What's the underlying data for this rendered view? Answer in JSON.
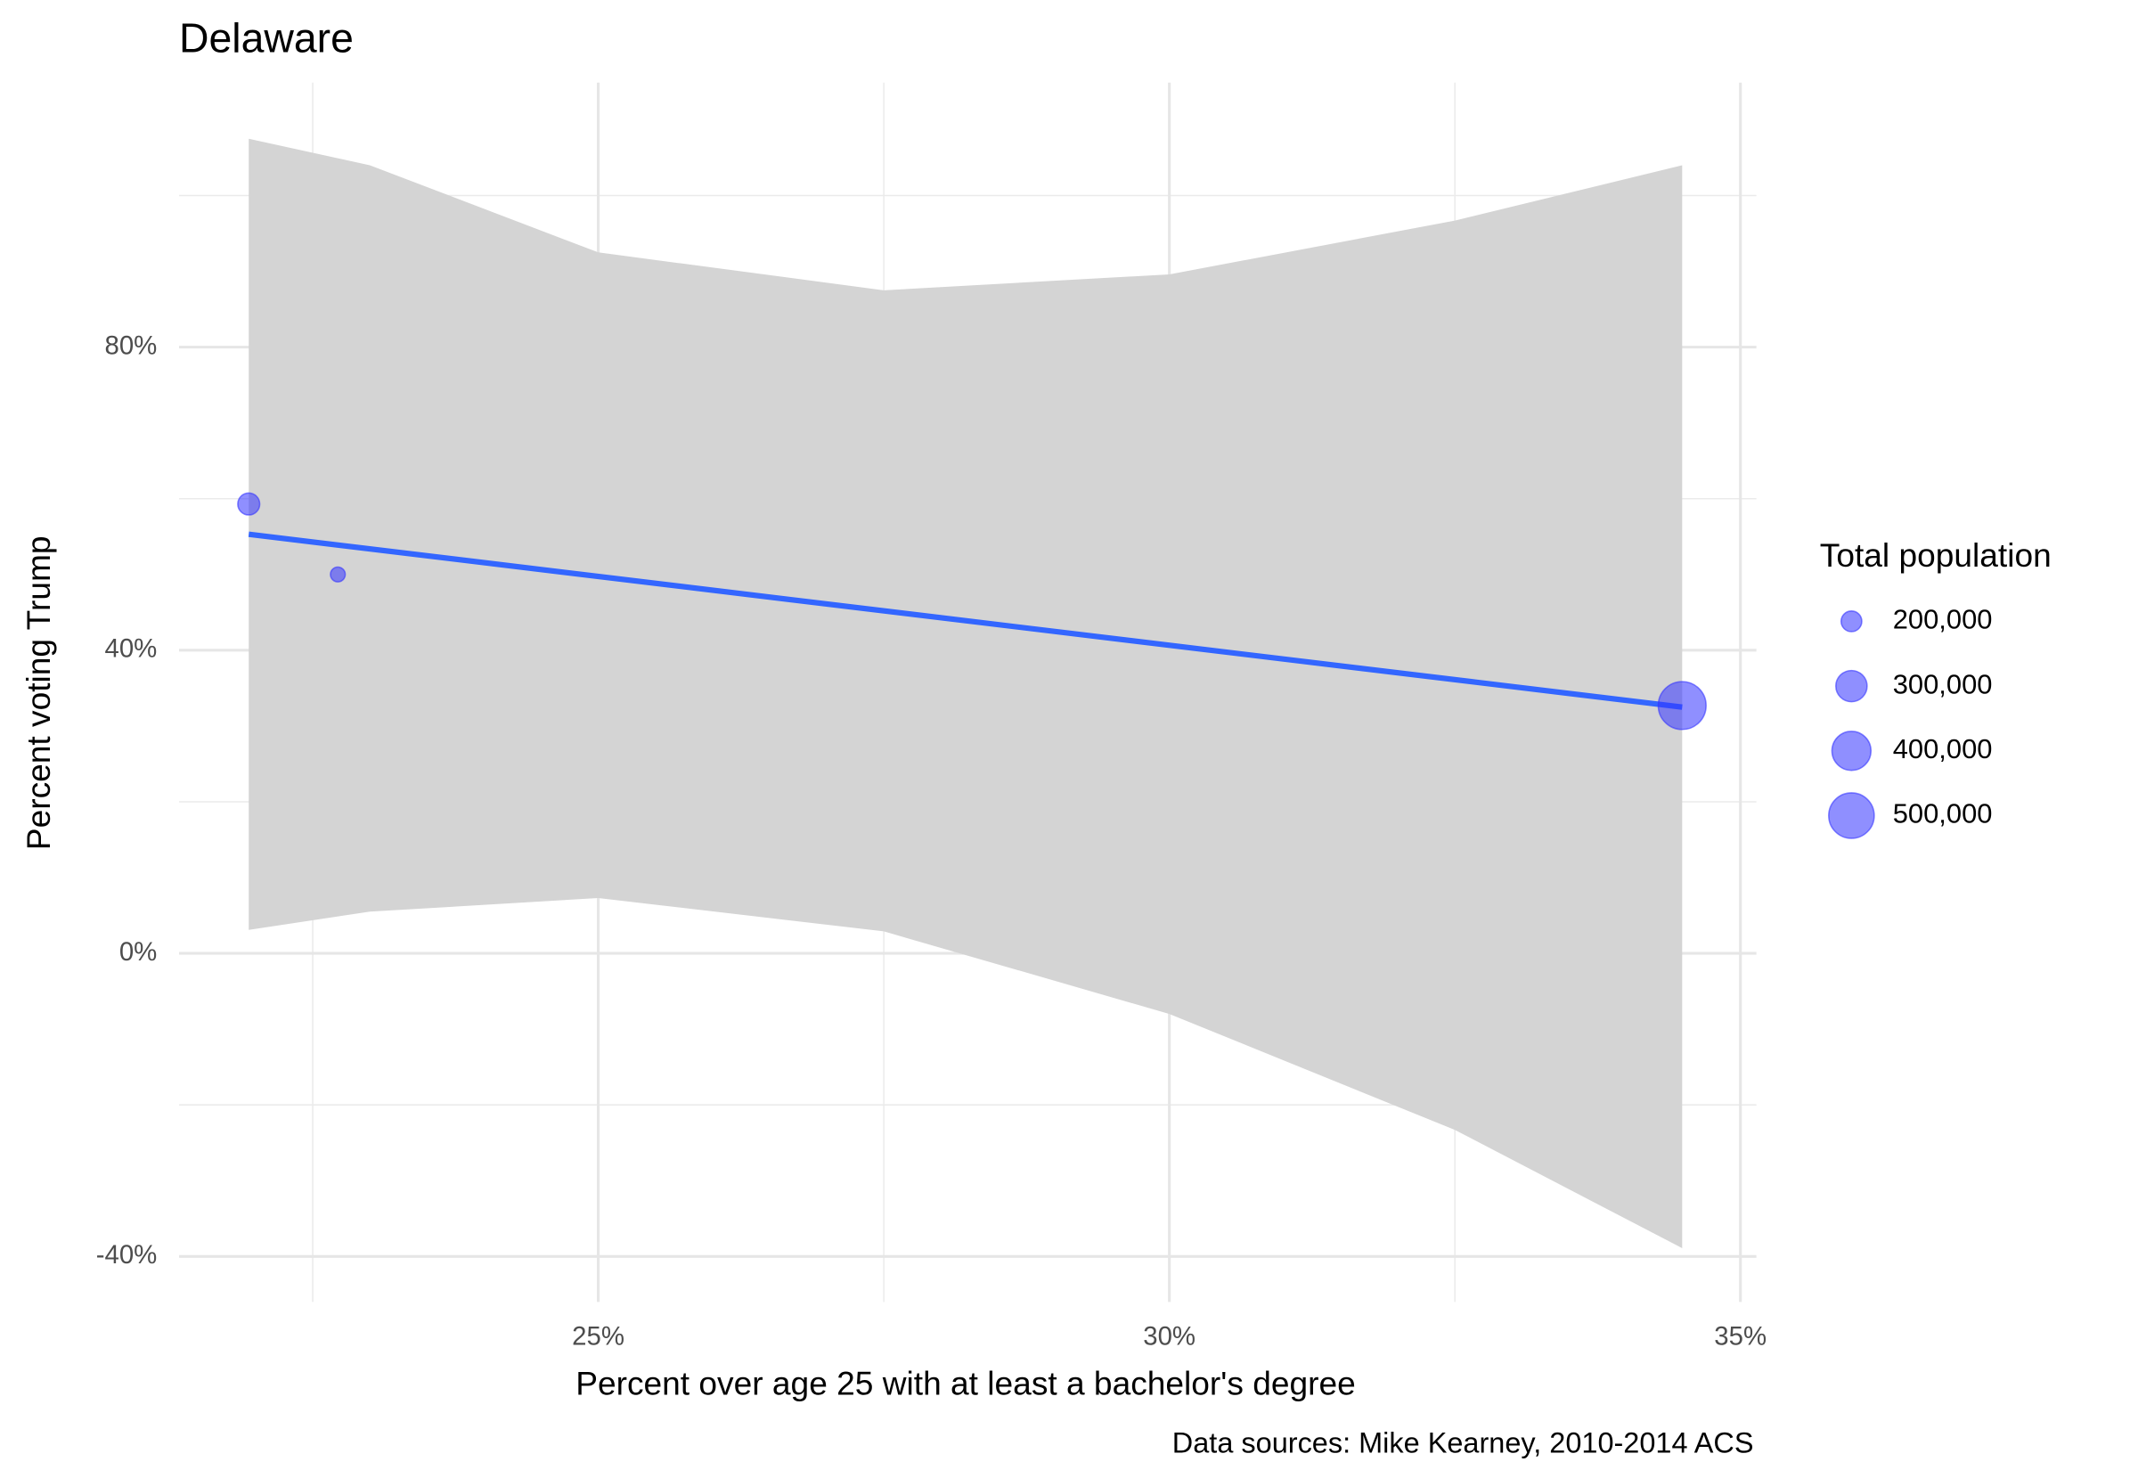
{
  "chart_data": {
    "type": "scatter",
    "title": "Delaware",
    "x_label": "Percent over age 25 with at least a bachelor's degree",
    "y_label": "Percent voting Trump",
    "caption": "Data sources: Mike Kearney, 2010-2014 ACS",
    "legend_title": "Total population",
    "color": "#3333ff",
    "x": [
      21.94,
      22.72,
      34.49
    ],
    "values": [
      59.3,
      50.0,
      32.7
    ],
    "sizes": [
      210000,
      162000,
      540000
    ],
    "size_ticks": [
      {
        "value": 200000,
        "label": "200,000"
      },
      {
        "value": 300000,
        "label": "300,000"
      },
      {
        "value": 400000,
        "label": "400,000"
      },
      {
        "value": 500000,
        "label": "500,000"
      }
    ],
    "trend": {
      "color": "#3366ff",
      "x": [
        21.94,
        34.49
      ],
      "values": [
        55.3,
        32.5
      ]
    },
    "band": {
      "color": "#d4d4d4",
      "x": [
        21.94,
        23,
        25,
        27.5,
        30,
        32.5,
        34.49
      ],
      "lower": [
        3.1,
        5.5,
        7.3,
        2.9,
        -8,
        -23.3,
        -38.9
      ],
      "upper": [
        107.5,
        104,
        92.5,
        87.5,
        89.6,
        96.7,
        104
      ]
    },
    "xlim": [
      21.33,
      35.14
    ],
    "xticks": [
      {
        "value": 25,
        "label": "25%"
      },
      {
        "value": 30,
        "label": "30%"
      },
      {
        "value": 35,
        "label": "35%"
      }
    ],
    "xminor": [
      22.5,
      27.5,
      32.5
    ],
    "ylim": [
      -46,
      114.9
    ],
    "yticks": [
      {
        "value": -40,
        "label": "-40%"
      },
      {
        "value": 0,
        "label": "0%"
      },
      {
        "value": 40,
        "label": "40%"
      },
      {
        "value": 80,
        "label": "80%"
      }
    ],
    "yminor": [
      -20,
      20,
      60,
      100
    ],
    "grid": true
  }
}
